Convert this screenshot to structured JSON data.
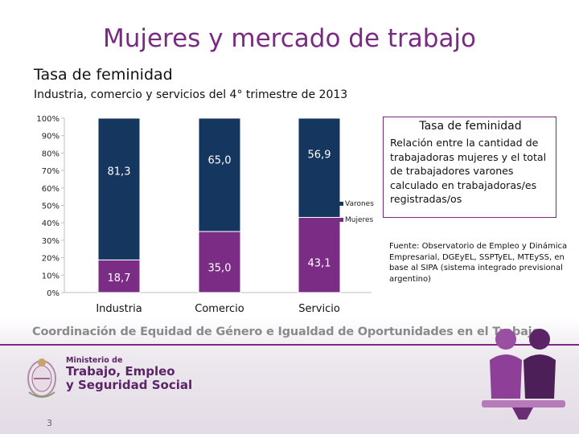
{
  "title": "Mujeres y mercado de trabajo",
  "subtitle": "Tasa de feminidad",
  "chart_data": {
    "type": "bar",
    "stacked": true,
    "title": "Industria, comercio y servicios del 4° trimestre de 2013",
    "categories": [
      "Industria",
      "Comercio",
      "Servicio"
    ],
    "series": [
      {
        "name": "Mujeres",
        "values": [
          18.7,
          35.0,
          43.1
        ],
        "labels": [
          "18,7",
          "35,0",
          "43,1"
        ],
        "color": "#7b2c84"
      },
      {
        "name": "Varones",
        "values": [
          81.3,
          65.0,
          56.9
        ],
        "labels": [
          "81,3",
          "65,0",
          "56,9"
        ],
        "color": "#14365f"
      }
    ],
    "y_ticks": [
      "0%",
      "10%",
      "20%",
      "30%",
      "40%",
      "50%",
      "60%",
      "70%",
      "80%",
      "90%",
      "100%"
    ],
    "ylim": [
      0,
      100
    ],
    "legend": [
      "Varones",
      "Mujeres"
    ],
    "legend_position": "right"
  },
  "info_box": {
    "title": "Tasa de feminidad",
    "text": "Relación entre la cantidad de trabajadoras mujeres y el total de trabajadores varones calculado en trabajadoras/es registradas/os"
  },
  "source": "Fuente: Observatorio de Empleo y Dinámica Empresarial, DGEyEL, SSPTyEL, MTEySS, en base al SIPA (sistema integrado previsional argentino)",
  "footer": {
    "coordination": "Coordinación de Equidad de Género e Igualdad de Oportunidades en el Trabajo",
    "ministry_small": "Ministerio de",
    "ministry_line1": "Trabajo, Empleo",
    "ministry_line2": "y Seguridad Social",
    "page_number": "3"
  },
  "colors": {
    "accent": "#7a2a82",
    "varones": "#14365f",
    "mujeres": "#7b2c84"
  }
}
